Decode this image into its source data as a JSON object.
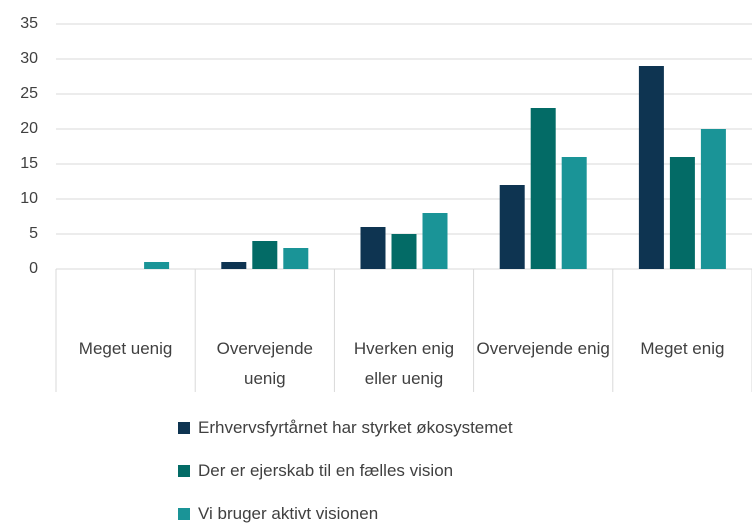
{
  "chart_data": {
    "type": "bar",
    "categories": [
      "Meget uenig",
      "Overvejende uenig",
      "Hverken enig eller uenig",
      "Overvejende enig",
      "Meget enig"
    ],
    "series": [
      {
        "name": "Erhvervsfyrtårnet har styrket økosystemet",
        "color": "#0e3451",
        "values": [
          0,
          1,
          6,
          12,
          29
        ]
      },
      {
        "name": "Der er ejerskab til en fælles vision",
        "color": "#036b66",
        "values": [
          0,
          4,
          5,
          23,
          16
        ]
      },
      {
        "name": "Vi bruger aktivt visionen",
        "color": "#1a9497",
        "values": [
          1,
          3,
          8,
          16,
          20
        ]
      }
    ],
    "ylim": [
      0,
      35
    ],
    "yticks": [
      0,
      5,
      10,
      15,
      20,
      25,
      30,
      35
    ],
    "grid": true,
    "legend": "bottom"
  }
}
